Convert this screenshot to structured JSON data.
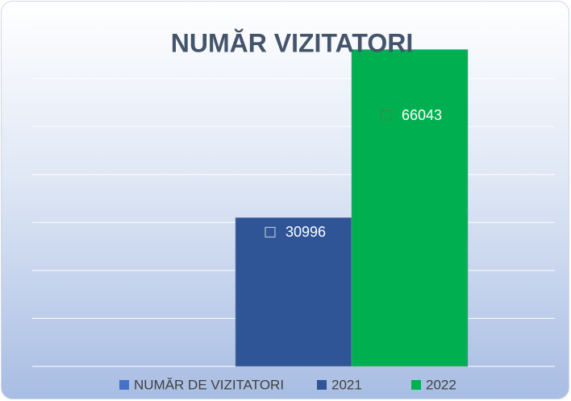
{
  "chart_data": {
    "type": "bar",
    "title": "NUMĂR VIZITATORI",
    "categories": [
      null
    ],
    "series": [
      {
        "name": "NUMĂR DE VIZITATORI",
        "color": "#4472c4",
        "values": [
          null
        ]
      },
      {
        "name": "2021",
        "color": "#2f5597",
        "values": [
          30996
        ]
      },
      {
        "name": "2022",
        "color": "#00b050",
        "values": [
          66043
        ]
      }
    ],
    "ylim": [
      0,
      70000
    ],
    "yticks": [
      0,
      10000,
      20000,
      30000,
      40000,
      50000,
      60000,
      70000
    ],
    "grid": true,
    "legend": "bottom"
  }
}
